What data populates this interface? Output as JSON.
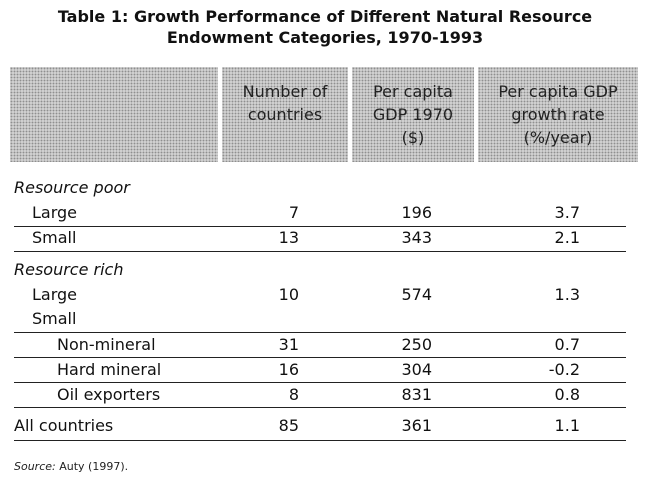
{
  "title_line1": "Table 1: Growth Performance of Different Natural Resource",
  "title_line2": "Endowment Categories, 1970-1993",
  "headers": [
    [
      "Number of",
      "countries"
    ],
    [
      "Per capita",
      "GDP 1970",
      "($)"
    ],
    [
      "Per capita GDP",
      "growth rate",
      "(%/year)"
    ]
  ],
  "rows": [
    {
      "label": "Resource poor",
      "style": "italic",
      "values": [
        "",
        "",
        ""
      ]
    },
    {
      "label": "Large",
      "values": [
        "7",
        "196",
        "3.7"
      ]
    },
    {
      "label": "Small",
      "values": [
        "13",
        "343",
        "2.1"
      ]
    },
    {
      "label": "Resource rich",
      "style": "italic",
      "values": [
        "",
        "",
        ""
      ]
    },
    {
      "label": "Large",
      "values": [
        "10",
        "574",
        "1.3"
      ]
    },
    {
      "label": "Small",
      "values": [
        "",
        "",
        ""
      ]
    },
    {
      "label": "Non-mineral",
      "values": [
        "31",
        "250",
        "0.7"
      ]
    },
    {
      "label": "Hard mineral",
      "values": [
        "16",
        "304",
        "-0.2"
      ]
    },
    {
      "label": "Oil exporters",
      "values": [
        "8",
        "831",
        "0.8"
      ]
    },
    {
      "label": "All countries",
      "values": [
        "85",
        "361",
        "1.1"
      ]
    }
  ],
  "source_label": "Source:",
  "source_text": " Auty (1997)."
}
